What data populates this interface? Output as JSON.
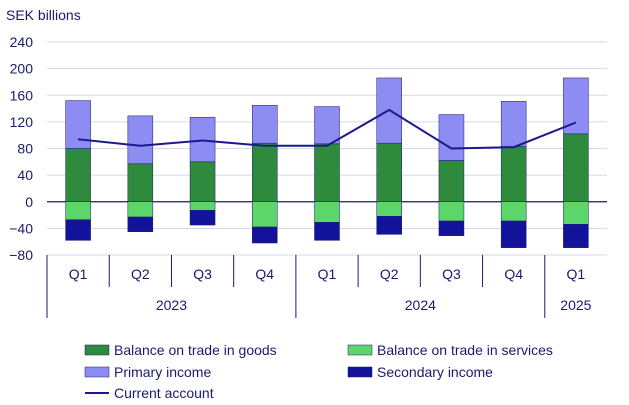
{
  "chart_data": {
    "type": "bar",
    "stacked": true,
    "ylabel": "SEK billions",
    "ylim": [
      -80,
      240
    ],
    "yticks": [
      240,
      200,
      160,
      120,
      80,
      40,
      0,
      -40,
      -80
    ],
    "grid": true,
    "legend_position": "bottom",
    "categories": [
      "Q1",
      "Q2",
      "Q3",
      "Q4",
      "Q1",
      "Q2",
      "Q3",
      "Q4",
      "Q1"
    ],
    "years": [
      {
        "label": "2023",
        "start": 0,
        "count": 4
      },
      {
        "label": "2024",
        "start": 4,
        "count": 4
      },
      {
        "label": "2025",
        "start": 8,
        "count": 1
      }
    ],
    "series": [
      {
        "name": "Balance on trade in goods",
        "color": "#2e8b3e",
        "kind": "bar",
        "values": [
          80,
          57,
          60,
          88,
          87,
          88,
          62,
          83,
          102
        ]
      },
      {
        "name": "Balance on trade in services",
        "color": "#5cd66a",
        "kind": "bar",
        "values": [
          -27,
          -23,
          -13,
          -38,
          -31,
          -22,
          -29,
          -29,
          -34
        ]
      },
      {
        "name": "Primary income",
        "color": "#8c8cf2",
        "kind": "bar",
        "values": [
          72,
          72,
          67,
          57,
          56,
          98,
          69,
          68,
          84
        ]
      },
      {
        "name": "Secondary income",
        "color": "#12129a",
        "kind": "bar",
        "values": [
          -31,
          -22,
          -22,
          -24,
          -27,
          -27,
          -22,
          -40,
          -35
        ]
      },
      {
        "name": "Current account",
        "color": "#1a1a8c",
        "kind": "line",
        "values": [
          94,
          84,
          92,
          84,
          84,
          138,
          80,
          82,
          119
        ]
      }
    ]
  }
}
